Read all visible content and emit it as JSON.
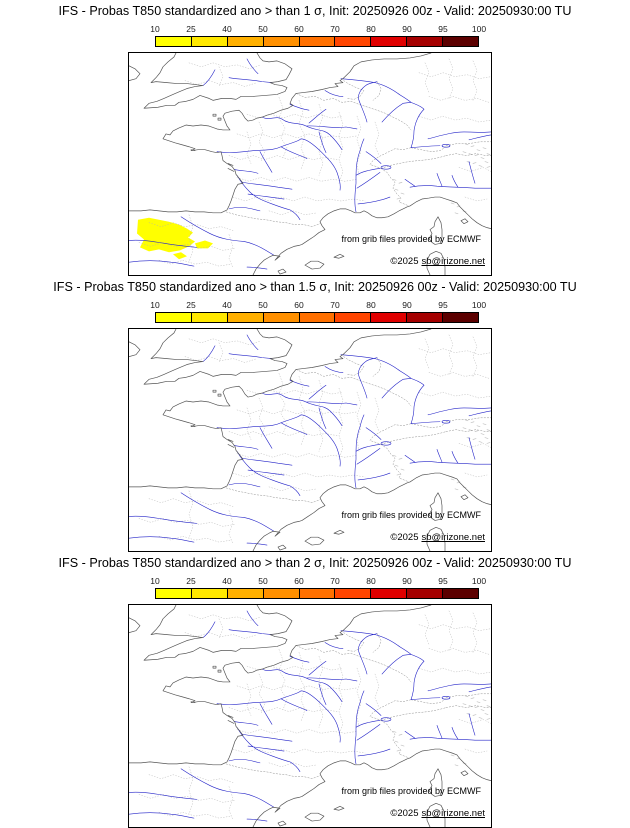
{
  "panels": [
    {
      "id": "sigma-1",
      "title": "IFS - Probas T850  standardized ano > than 1 σ, Init: 20250926 00z - Valid: 20250930:00 TU"
    },
    {
      "id": "sigma-1_5",
      "title": "IFS - Probas T850  standardized ano > than 1.5 σ, Init: 20250926 00z - Valid: 20250930:00 TU"
    },
    {
      "id": "sigma-2",
      "title": "IFS - Probas T850  standardized ano > than 2 σ, Init: 20250926 00z - Valid: 20250930:00 TU"
    }
  ],
  "colorbar": {
    "tick_labels": [
      "10",
      "25",
      "40",
      "50",
      "60",
      "70",
      "80",
      "90",
      "95",
      "100"
    ],
    "segment_colors": [
      "#ffff00",
      "#ffe800",
      "#ffb000",
      "#ff9000",
      "#ff7000",
      "#ff4500",
      "#e00000",
      "#a50000",
      "#5c0000"
    ]
  },
  "map": {
    "attribution": "from grib files provided by ECMWF",
    "copyright_prefix": "©2025",
    "copyright_link": "sb@irizone.net",
    "anomaly_color": "#ffff00",
    "river_color": "#2424c8",
    "coast_color": "#555555",
    "admin_border_color": "#909090",
    "mesh_color": "#b0b0b0"
  }
}
